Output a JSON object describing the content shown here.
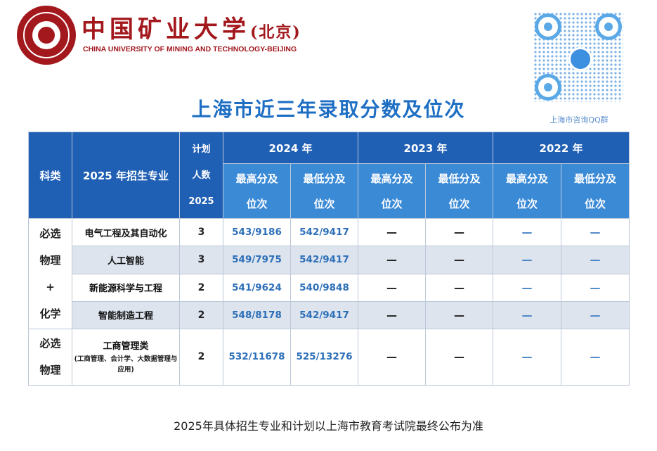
{
  "header": {
    "university_cn": "中国矿业大学",
    "university_cn_suffix": "(北京)",
    "university_en": "CHINA UNIVERSITY OF MINING AND TECHNOLOGY-BEIJING",
    "qr_caption": "上海市咨询QQ群"
  },
  "title": "上海市近三年录取分数及位次",
  "table": {
    "col_subject": "科类",
    "col_major": "2025 年招生专业",
    "col_plan": [
      "计划",
      "人数",
      "2025"
    ],
    "years": [
      "2024 年",
      "2023 年",
      "2022 年"
    ],
    "sub_high": [
      "最高分及",
      "位次"
    ],
    "sub_low": [
      "最低分及",
      "位次"
    ],
    "group1_subject": [
      "必选",
      "物理",
      "+",
      "化学"
    ],
    "group2_subject": [
      "必选",
      "物理"
    ],
    "rows": [
      {
        "major": "电气工程及其自动化",
        "plan": "3",
        "high_2024": "543/9186",
        "low_2024": "542/9417",
        "high_2023": "—",
        "low_2023": "—",
        "high_2022": "—",
        "low_2022": "—"
      },
      {
        "major": "人工智能",
        "plan": "3",
        "high_2024": "549/7975",
        "low_2024": "542/9417",
        "high_2023": "—",
        "low_2023": "—",
        "high_2022": "—",
        "low_2022": "—"
      },
      {
        "major": "新能源科学与工程",
        "plan": "2",
        "high_2024": "541/9624",
        "low_2024": "540/9848",
        "high_2023": "—",
        "low_2023": "—",
        "high_2022": "—",
        "low_2022": "—"
      },
      {
        "major": "智能制造工程",
        "plan": "2",
        "high_2024": "548/8178",
        "low_2024": "542/9417",
        "high_2023": "—",
        "low_2023": "—",
        "high_2022": "—",
        "low_2022": "—"
      },
      {
        "major": "工商管理类",
        "major_note": "(工商管理、会计学、大数据管理与应用)",
        "plan": "2",
        "high_2024": "532/11678",
        "low_2024": "525/13276",
        "high_2023": "—",
        "low_2023": "—",
        "high_2022": "—",
        "low_2022": "—"
      }
    ]
  },
  "footer": "2025年具体招生专业和计划以上海市教育考试院最终公布为准",
  "colors": {
    "accent": "#1e6fc4",
    "brand": "#a3181d",
    "header_dark": "#1f5fb4",
    "header_light": "#3b8ad6",
    "row_alt": "#dde4ee"
  }
}
